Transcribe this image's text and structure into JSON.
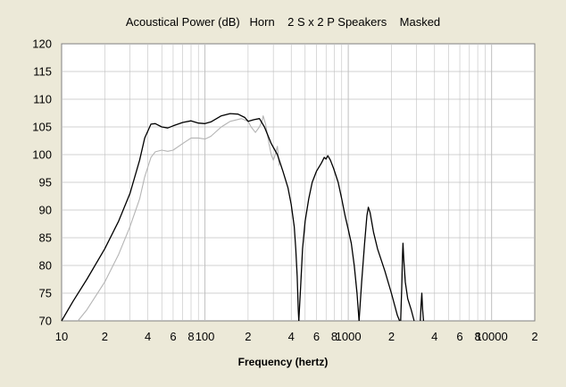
{
  "chart_data": {
    "type": "line",
    "title": "Acoustical Power (dB)   Horn    2 S x 2 P Speakers    Masked",
    "xlabel": "Frequency (hertz)",
    "ylabel": "",
    "x_scale": "log",
    "xlim": [
      10,
      20000
    ],
    "ylim": [
      70,
      120
    ],
    "grid": true,
    "legend": "none",
    "y_ticks": [
      70,
      75,
      80,
      85,
      90,
      95,
      100,
      105,
      110,
      115,
      120
    ],
    "x_ticks": [
      {
        "value": 10,
        "label": "10"
      },
      {
        "value": 20,
        "label": "2"
      },
      {
        "value": 40,
        "label": "4"
      },
      {
        "value": 60,
        "label": "6"
      },
      {
        "value": 80,
        "label": "8"
      },
      {
        "value": 100,
        "label": "100"
      },
      {
        "value": 200,
        "label": "2"
      },
      {
        "value": 400,
        "label": "4"
      },
      {
        "value": 600,
        "label": "6"
      },
      {
        "value": 800,
        "label": "8"
      },
      {
        "value": 1000,
        "label": "1000"
      },
      {
        "value": 2000,
        "label": "2"
      },
      {
        "value": 4000,
        "label": "4"
      },
      {
        "value": 6000,
        "label": "6"
      },
      {
        "value": 8000,
        "label": "8"
      },
      {
        "value": 10000,
        "label": "10000"
      },
      {
        "value": 20000,
        "label": "2"
      }
    ],
    "colors": {
      "background": "#ece9d8",
      "plot": "#ffffff",
      "grid": "#c0c0c0",
      "primary": "#000000",
      "secondary": "#b4b4b4"
    },
    "series": [
      {
        "color": "#000000",
        "points": [
          [
            10,
            70
          ],
          [
            12,
            73.5
          ],
          [
            15,
            77.5
          ],
          [
            20,
            83
          ],
          [
            25,
            88
          ],
          [
            30,
            93
          ],
          [
            35,
            99
          ],
          [
            38,
            103
          ],
          [
            42,
            105.5
          ],
          [
            45,
            105.6
          ],
          [
            50,
            105
          ],
          [
            55,
            104.8
          ],
          [
            60,
            105.2
          ],
          [
            70,
            105.8
          ],
          [
            80,
            106.1
          ],
          [
            90,
            105.7
          ],
          [
            100,
            105.6
          ],
          [
            110,
            105.9
          ],
          [
            130,
            107
          ],
          [
            150,
            107.4
          ],
          [
            170,
            107.3
          ],
          [
            190,
            106.7
          ],
          [
            200,
            106
          ],
          [
            220,
            106.3
          ],
          [
            240,
            106.5
          ],
          [
            260,
            105
          ],
          [
            290,
            102
          ],
          [
            320,
            100
          ],
          [
            350,
            97
          ],
          [
            380,
            94
          ],
          [
            400,
            91
          ],
          [
            420,
            87
          ],
          [
            430,
            83
          ],
          [
            440,
            78
          ],
          [
            448,
            72
          ],
          [
            452,
            70
          ]
        ]
      },
      {
        "color": "#000000",
        "points": [
          [
            452,
            70
          ],
          [
            465,
            76
          ],
          [
            480,
            83
          ],
          [
            500,
            88
          ],
          [
            530,
            92
          ],
          [
            560,
            95
          ],
          [
            600,
            97
          ],
          [
            650,
            98.5
          ],
          [
            680,
            99.5
          ],
          [
            700,
            99.2
          ],
          [
            720,
            99.8
          ],
          [
            750,
            99
          ],
          [
            790,
            97.5
          ],
          [
            850,
            95
          ],
          [
            900,
            92
          ],
          [
            950,
            89
          ],
          [
            1000,
            86.5
          ],
          [
            1050,
            84
          ],
          [
            1100,
            80
          ],
          [
            1150,
            75
          ],
          [
            1190,
            70
          ]
        ]
      },
      {
        "color": "#000000",
        "points": [
          [
            1190,
            70
          ],
          [
            1240,
            77
          ],
          [
            1300,
            84
          ],
          [
            1350,
            89
          ],
          [
            1380,
            90.5
          ],
          [
            1420,
            89.5
          ],
          [
            1500,
            86
          ],
          [
            1600,
            83
          ],
          [
            1800,
            79
          ],
          [
            2000,
            75
          ],
          [
            2200,
            71
          ],
          [
            2280,
            70
          ]
        ]
      },
      {
        "color": "#000000",
        "points": [
          [
            2320,
            70
          ],
          [
            2360,
            76
          ],
          [
            2390,
            82
          ],
          [
            2410,
            84
          ],
          [
            2440,
            81
          ],
          [
            2500,
            77
          ],
          [
            2600,
            74
          ],
          [
            2750,
            72
          ],
          [
            2880,
            70
          ]
        ]
      },
      {
        "color": "#000000",
        "points": [
          [
            3180,
            70
          ],
          [
            3220,
            73
          ],
          [
            3260,
            75
          ],
          [
            3300,
            72
          ],
          [
            3350,
            70
          ]
        ]
      },
      {
        "color": "#b4b4b4",
        "points": [
          [
            13,
            70
          ],
          [
            15,
            72
          ],
          [
            20,
            77
          ],
          [
            25,
            82
          ],
          [
            30,
            87
          ],
          [
            35,
            92
          ],
          [
            38,
            96
          ],
          [
            42,
            99.5
          ],
          [
            45,
            100.5
          ],
          [
            50,
            100.8
          ],
          [
            55,
            100.6
          ],
          [
            60,
            100.8
          ],
          [
            70,
            102
          ],
          [
            80,
            103
          ],
          [
            90,
            103
          ],
          [
            100,
            102.8
          ],
          [
            110,
            103.3
          ],
          [
            130,
            105
          ],
          [
            150,
            106
          ],
          [
            180,
            106.5
          ],
          [
            200,
            106
          ],
          [
            210,
            105
          ],
          [
            225,
            104
          ],
          [
            240,
            105
          ],
          [
            250,
            106
          ],
          [
            255,
            107
          ],
          [
            265,
            105.5
          ],
          [
            280,
            102
          ],
          [
            290,
            100
          ],
          [
            300,
            99
          ],
          [
            310,
            100
          ],
          [
            320,
            101.5
          ],
          [
            330,
            98
          ]
        ]
      }
    ]
  }
}
